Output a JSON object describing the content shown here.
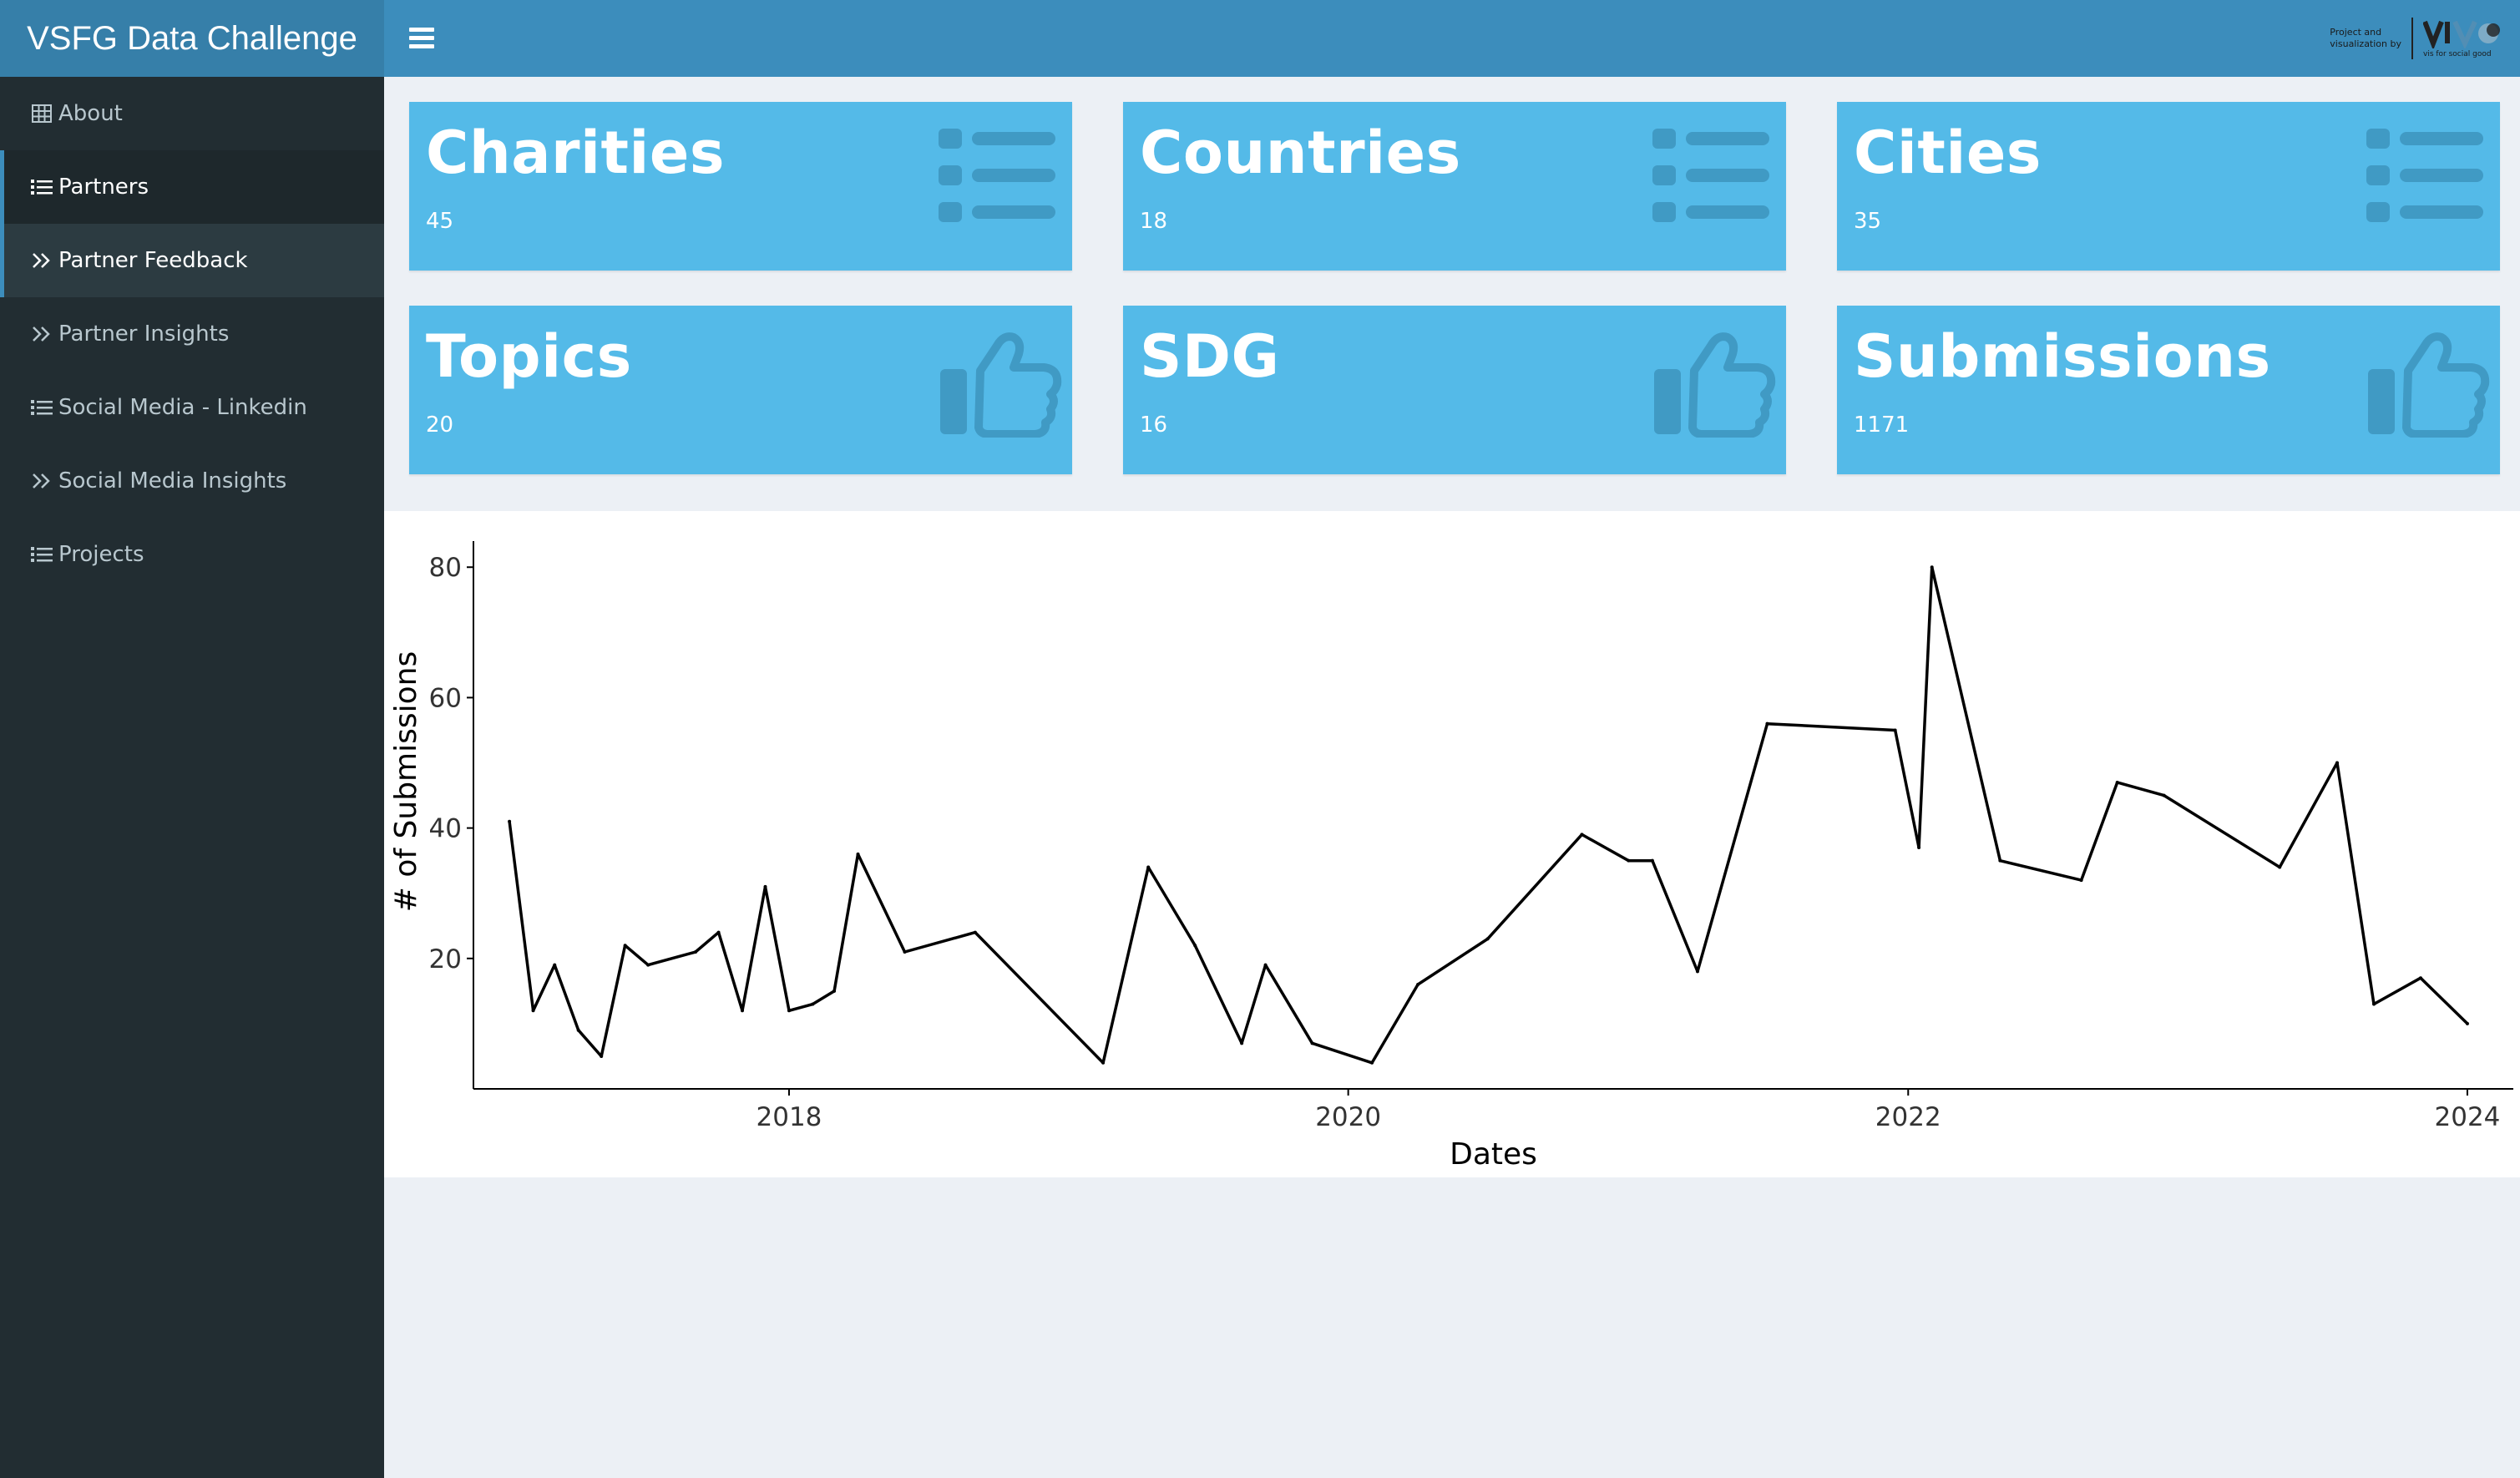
{
  "header": {
    "app_title": "VSFG Data Challenge",
    "brand_small_line1": "Project and",
    "brand_small_line2": "visualization by",
    "brand_caption": "vis for social good"
  },
  "sidebar": {
    "items": [
      {
        "label": "About",
        "icon": "table-icon"
      },
      {
        "label": "Partners",
        "icon": "list-icon"
      },
      {
        "label": "Partner Feedback",
        "icon": "double-chevron-right-icon"
      },
      {
        "label": "Partner Insights",
        "icon": "double-chevron-right-icon"
      },
      {
        "label": "Social Media - Linkedin",
        "icon": "list-icon"
      },
      {
        "label": "Social Media Insights",
        "icon": "double-chevron-right-icon"
      },
      {
        "label": "Projects",
        "icon": "list-icon"
      }
    ]
  },
  "value_boxes": [
    {
      "title": "Charities",
      "value": "45",
      "icon": "list-icon"
    },
    {
      "title": "Countries",
      "value": "18",
      "icon": "list-icon"
    },
    {
      "title": "Cities",
      "value": "35",
      "icon": "list-icon"
    },
    {
      "title": "Topics",
      "value": "20",
      "icon": "thumbs-up-icon"
    },
    {
      "title": "SDG",
      "value": "16",
      "icon": "thumbs-up-icon"
    },
    {
      "title": "Submissions",
      "value": "1171",
      "icon": "thumbs-up-icon"
    }
  ],
  "colors": {
    "header_bg": "#3c8dbc",
    "logo_bg": "#367fa9",
    "sidebar_bg": "#222d32",
    "value_box_bg": "#54bae8",
    "value_box_icon": "#3a8fb8",
    "page_bg": "#ecf0f5",
    "line": "#000000"
  },
  "chart_data": {
    "type": "line",
    "title": "",
    "xlabel": "Dates",
    "ylabel": "# of Submissions",
    "x_ticks": [
      "2018",
      "2020",
      "2022",
      "2024"
    ],
    "y_ticks": [
      20,
      40,
      60,
      80
    ],
    "xlim": [
      "2016-11-15",
      "2024-03-01"
    ],
    "ylim": [
      0,
      84
    ],
    "grid": false,
    "series": [
      {
        "x": [
          "2017-01-01",
          "2017-02-01",
          "2017-03-01",
          "2017-04-01",
          "2017-05-01",
          "2017-06-01",
          "2017-07-01",
          "2017-09-01",
          "2017-10-01",
          "2017-11-01",
          "2017-12-01",
          "2018-01-01",
          "2018-02-01",
          "2018-03-01",
          "2018-04-01",
          "2018-06-01",
          "2018-09-01",
          "2019-02-15",
          "2019-04-15",
          "2019-06-15",
          "2019-08-15",
          "2019-09-15",
          "2019-11-15",
          "2020-02-01",
          "2020-04-01",
          "2020-07-01",
          "2020-11-01",
          "2021-01-01",
          "2021-02-01",
          "2021-04-01",
          "2021-07-01",
          "2021-12-15",
          "2022-01-15",
          "2022-02-01",
          "2022-05-01",
          "2022-08-15",
          "2022-10-01",
          "2022-12-01",
          "2023-05-01",
          "2023-07-15",
          "2023-09-01",
          "2023-11-01",
          "2024-01-01"
        ],
        "values": [
          41,
          12,
          19,
          9,
          5,
          22,
          19,
          21,
          24,
          12,
          31,
          12,
          13,
          15,
          36,
          21,
          24,
          4,
          34,
          22,
          7,
          19,
          7,
          4,
          16,
          23,
          39,
          35,
          35,
          18,
          56,
          55,
          37,
          80,
          35,
          32,
          47,
          45,
          34,
          50,
          13,
          17,
          10
        ]
      }
    ]
  }
}
